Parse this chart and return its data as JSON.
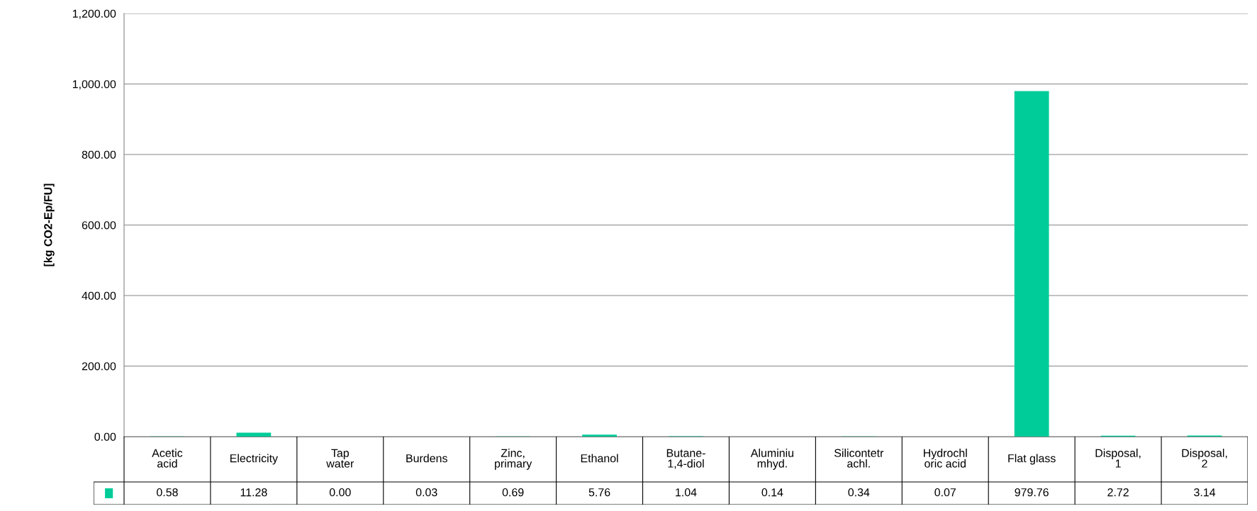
{
  "chart_data": {
    "type": "bar",
    "ylabel": "[kg CO2-Ep/FU]",
    "categories": [
      "Acetic\nacid",
      "Electricity",
      "Tap\nwater",
      "Burdens",
      "Zinc,\nprimary",
      "Ethanol",
      "Butane-\n1,4-diol",
      "Aluminiu\nmhyd.",
      "Silicontetr\nachl.",
      "Hydrochl\noric acid",
      "Flat glass",
      "Disposal,\n1",
      "Disposal,\n2"
    ],
    "series": [
      {
        "color": "#00cc99",
        "values": [
          0.58,
          11.28,
          0.0,
          0.03,
          0.69,
          5.76,
          1.04,
          0.14,
          0.34,
          0.07,
          979.76,
          2.72,
          3.14
        ],
        "value_labels": [
          "0.58",
          "11.28",
          "0.00",
          "0.03",
          "0.69",
          "5.76",
          "1.04",
          "0.14",
          "0.34",
          "0.07",
          "979.76",
          "2.72",
          "3.14"
        ]
      }
    ],
    "ylim": [
      0,
      1200
    ],
    "yticks": [
      {
        "value": 0,
        "label": "0.00"
      },
      {
        "value": 200,
        "label": "200.00"
      },
      {
        "value": 400,
        "label": "400.00"
      },
      {
        "value": 600,
        "label": "600.00"
      },
      {
        "value": 800,
        "label": "800.00"
      },
      {
        "value": 1000,
        "label": "1,000.00"
      },
      {
        "value": 1200,
        "label": "1,200.00"
      }
    ],
    "grid": "y"
  }
}
